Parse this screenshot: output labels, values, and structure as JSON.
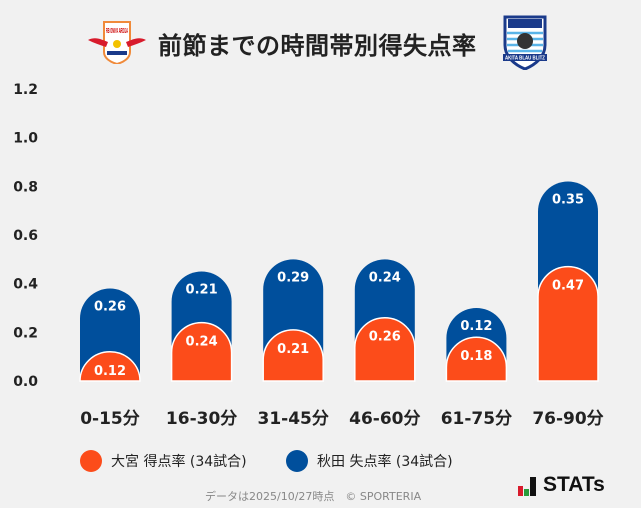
{
  "header": {
    "title": "前節までの時間帯別得失点率",
    "left_logo_text": "RB OMIYA ARDIJA",
    "right_logo_text": "AKITA BLAU BLITZ"
  },
  "chart_data": {
    "type": "bar",
    "stacked": true,
    "title": "前節までの時間帯別得失点率",
    "categories": [
      "0-15分",
      "16-30分",
      "31-45分",
      "46-60分",
      "61-75分",
      "76-90分"
    ],
    "series": [
      {
        "name": "大宮 得点率 (34試合)",
        "color": "#fc4c1a",
        "values": [
          0.12,
          0.24,
          0.21,
          0.26,
          0.18,
          0.47
        ]
      },
      {
        "name": "秋田 失点率 (34試合)",
        "color": "#004f9c",
        "values": [
          0.26,
          0.21,
          0.29,
          0.24,
          0.12,
          0.35
        ]
      }
    ],
    "ylim": [
      0,
      1.2
    ],
    "yticks": [
      "0.0",
      "0.2",
      "0.4",
      "0.6",
      "0.8",
      "1.0",
      "1.2"
    ],
    "grid": false,
    "legend": "bottom"
  },
  "footer": {
    "note": "データは2025/10/27時点　© SPORTERIA",
    "brand": "STATs"
  }
}
